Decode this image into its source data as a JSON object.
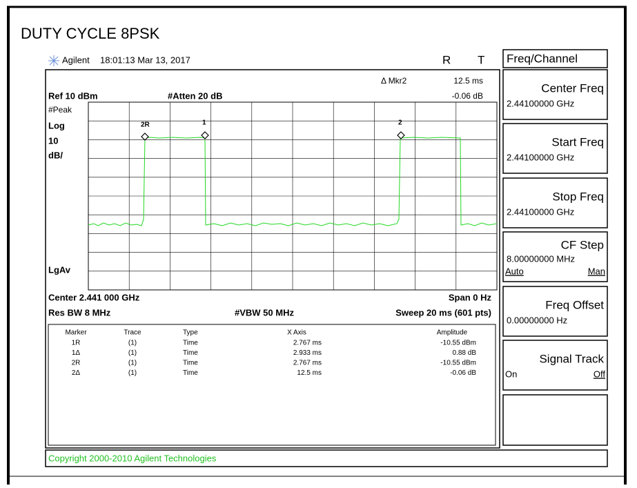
{
  "title": "DUTY CYCLE 8PSK",
  "header": {
    "brand": "Agilent",
    "timestamp": "18:01:13 Mar 13, 2017",
    "indicator_r": "R",
    "indicator_t": "T"
  },
  "screen": {
    "marker_delta": "Δ Mkr2",
    "marker_delta_time": "12.5 ms",
    "marker_delta_amp": "-0.06 dB",
    "ref": "Ref 10 dBm",
    "atten": "#Atten 20 dB",
    "left_labels": [
      "#Peak",
      "Log",
      "10",
      "dB/",
      "LgAv"
    ],
    "trace_markers": [
      "2R",
      "1",
      "2"
    ],
    "center": "Center 2.441 000 GHz",
    "span": "Span 0 Hz",
    "res_bw": "Res BW 8 MHz",
    "vbw": "#VBW 50 MHz",
    "sweep": "Sweep 20 ms (601 pts)"
  },
  "table": {
    "headers": [
      "Marker",
      "Trace",
      "Type",
      "X Axis",
      "Amplitude"
    ],
    "rows": [
      [
        "1R",
        "(1)",
        "Time",
        "2.767 ms",
        "-10.55 dBm"
      ],
      [
        "1Δ",
        "(1)",
        "Time",
        "2.933 ms",
        "0.88 dB"
      ],
      [
        "2R",
        "(1)",
        "Time",
        "2.767 ms",
        "-10.55 dBm"
      ],
      [
        "2Δ",
        "(1)",
        "Time",
        "12.5 ms",
        "-0.06 dB"
      ]
    ]
  },
  "menu": {
    "title": "Freq/Channel",
    "keys": [
      {
        "label": "Center Freq",
        "value": "2.44100000 GHz"
      },
      {
        "label": "Start Freq",
        "value": "2.44100000 GHz"
      },
      {
        "label": "Stop Freq",
        "value": "2.44100000 GHz"
      },
      {
        "label": "CF Step",
        "value": "8.00000000 MHz",
        "left": "Auto",
        "right": "Man"
      },
      {
        "label": "Freq Offset",
        "value": "0.00000000 Hz"
      },
      {
        "label": "Signal Track",
        "left": "On",
        "right": "Off"
      }
    ]
  },
  "copyright": "Copyright 2000-2010 Agilent Technologies"
}
